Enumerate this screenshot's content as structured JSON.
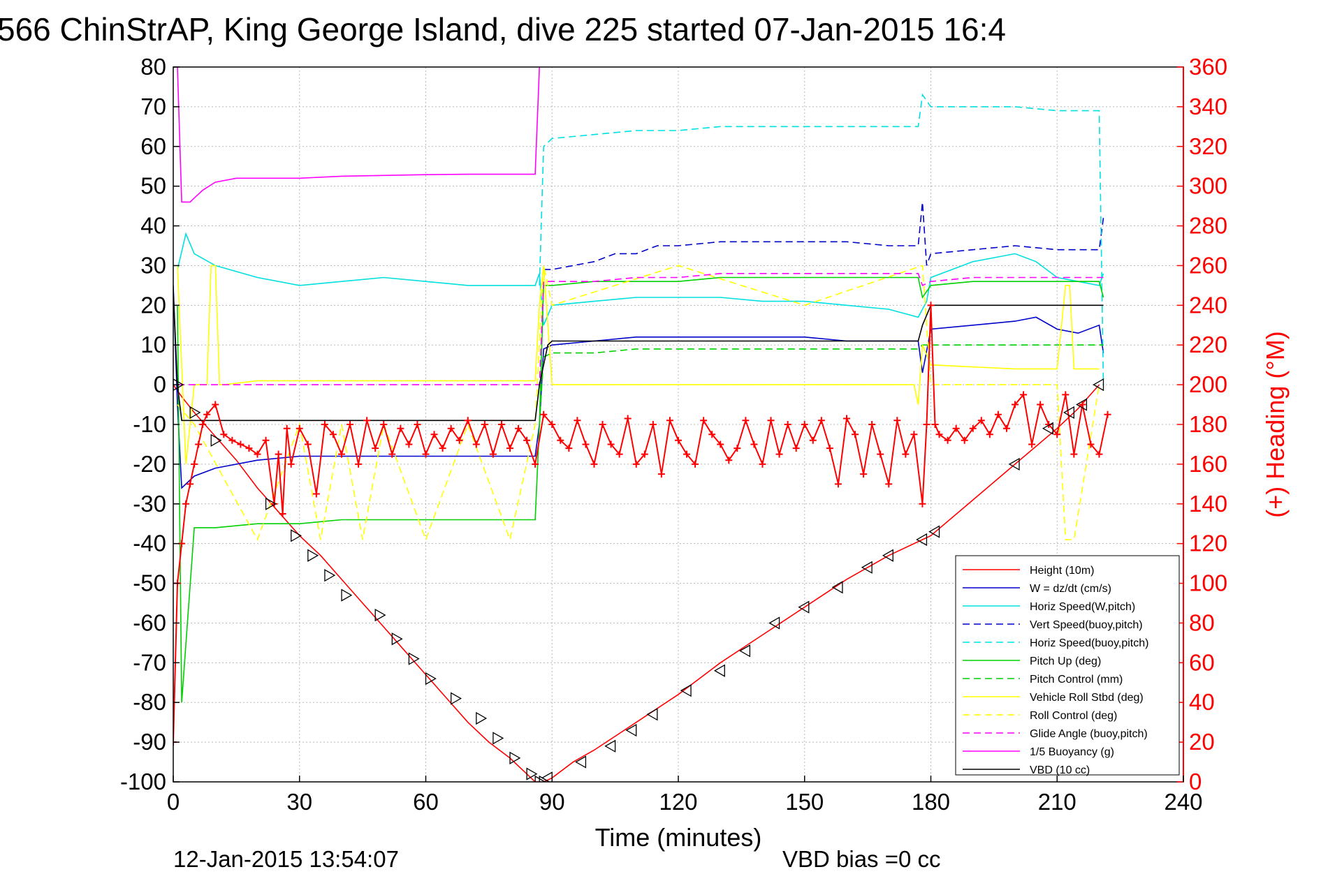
{
  "chart_data": {
    "type": "line",
    "title": "566 ChinStrAP, King George Island, dive 225 started 07-Jan-2015 16:4",
    "xlabel": "Time (minutes)",
    "ylabel_right": "(+) Heading (°M)",
    "xlim": [
      0,
      240
    ],
    "ylim_left": [
      -100,
      80
    ],
    "ylim_right": [
      0,
      360
    ],
    "grid": true,
    "legend_placement": "lower-right",
    "x_ticks": [
      "0",
      "30",
      "60",
      "90",
      "120",
      "150",
      "180",
      "210",
      "240"
    ],
    "y_ticks_left": [
      "80",
      "70",
      "60",
      "50",
      "40",
      "30",
      "20",
      "10",
      "0",
      "-10",
      "-20",
      "-30",
      "-40",
      "-50",
      "-60",
      "-70",
      "-80",
      "-90",
      "-100"
    ],
    "y_ticks_right": [
      "360",
      "340",
      "320",
      "300",
      "280",
      "260",
      "240",
      "220",
      "200",
      "180",
      "160",
      "140",
      "120",
      "100",
      "80",
      "60",
      "40",
      "20",
      "0"
    ],
    "footer_left": "12-Jan-2015 13:54:07",
    "footer_right": "VBD bias =0 cc",
    "series": [
      {
        "name": "Height (10m)",
        "color": "#ff0000",
        "style": "solid",
        "marker": "triangle",
        "x": [
          0,
          2,
          5,
          10,
          15,
          20,
          25,
          30,
          35,
          40,
          45,
          50,
          55,
          60,
          65,
          70,
          75,
          80,
          86,
          88,
          90,
          95,
          100,
          110,
          120,
          130,
          140,
          150,
          160,
          170,
          178,
          180,
          190,
          200,
          210,
          215,
          220
        ],
        "y": [
          0,
          -3,
          -7,
          -13,
          -19,
          -26,
          -32,
          -38,
          -43,
          -49,
          -55,
          -61,
          -67,
          -73,
          -79,
          -85,
          -90,
          -94,
          -100,
          -100,
          -99,
          -95,
          -92,
          -85,
          -78,
          -70,
          -63,
          -56,
          -49,
          -43,
          -39,
          -38,
          -29,
          -20,
          -11,
          -6,
          0
        ]
      },
      {
        "name": "W = dz/dt (cm/s)",
        "color": "#0000cc",
        "style": "solid",
        "x": [
          0,
          1,
          2,
          5,
          10,
          20,
          30,
          40,
          50,
          60,
          70,
          80,
          86,
          87,
          88,
          90,
          100,
          110,
          120,
          130,
          140,
          150,
          160,
          170,
          177,
          178,
          180,
          190,
          200,
          205,
          210,
          215,
          220,
          221
        ],
        "y": [
          25,
          -5,
          -26,
          -23,
          -21,
          -19,
          -18,
          -18,
          -18,
          -18,
          -18,
          -18,
          -18,
          -10,
          9,
          10,
          11,
          12,
          12,
          12,
          12,
          12,
          11,
          11,
          11,
          3,
          14,
          15,
          16,
          17,
          14,
          13,
          15,
          8
        ]
      },
      {
        "name": "Horiz Speed(W,pitch)",
        "color": "#00e0e0",
        "style": "solid",
        "x": [
          1,
          3,
          5,
          10,
          20,
          30,
          40,
          50,
          60,
          70,
          80,
          86,
          87,
          88,
          90,
          100,
          110,
          120,
          130,
          140,
          150,
          160,
          170,
          177,
          179,
          180,
          190,
          200,
          205,
          210,
          215,
          220,
          221
        ],
        "y": [
          29,
          38,
          33,
          30,
          27,
          25,
          26,
          27,
          26,
          25,
          25,
          25,
          28,
          15,
          20,
          21,
          22,
          22,
          22,
          21,
          21,
          20,
          19,
          17,
          21,
          27,
          31,
          33,
          31,
          27,
          26,
          25,
          28
        ]
      },
      {
        "name": "Vert Speed(buoy,pitch)",
        "color": "#0000cc",
        "style": "dashed",
        "x": [
          88,
          90,
          95,
          100,
          105,
          110,
          115,
          120,
          130,
          140,
          150,
          160,
          170,
          177,
          178,
          179,
          180,
          190,
          200,
          210,
          220,
          221
        ],
        "y": [
          29,
          29,
          30,
          31,
          33,
          33,
          35,
          35,
          36,
          36,
          36,
          36,
          35,
          35,
          46,
          30,
          33,
          34,
          35,
          34,
          34,
          42
        ]
      },
      {
        "name": "Horiz Speed(buoy,pitch)",
        "color": "#00e0e0",
        "style": "dashed",
        "x": [
          87,
          88,
          90,
          100,
          110,
          120,
          130,
          140,
          150,
          160,
          170,
          177,
          178,
          180,
          190,
          200,
          210,
          220,
          221
        ],
        "y": [
          25,
          60,
          62,
          63,
          64,
          64,
          65,
          65,
          65,
          65,
          65,
          65,
          73,
          70,
          70,
          70,
          69,
          69,
          0
        ]
      },
      {
        "name": "Pitch Up (deg)",
        "color": "#00d000",
        "style": "solid",
        "x": [
          1,
          2,
          5,
          10,
          20,
          30,
          40,
          50,
          60,
          70,
          80,
          86,
          87,
          88,
          90,
          100,
          110,
          120,
          130,
          140,
          150,
          160,
          170,
          177,
          178,
          180,
          190,
          200,
          210,
          220,
          221
        ],
        "y": [
          20,
          -80,
          -36,
          -36,
          -35,
          -35,
          -34,
          -34,
          -34,
          -34,
          -34,
          -34,
          -10,
          25,
          25,
          26,
          26,
          26,
          27,
          27,
          27,
          27,
          27,
          27,
          22,
          25,
          26,
          26,
          26,
          26,
          22
        ]
      },
      {
        "name": "Pitch Control (mm)",
        "color": "#00d000",
        "style": "dashed",
        "x": [
          87,
          88,
          90,
          100,
          110,
          120,
          130,
          140,
          150,
          160,
          170,
          177,
          178,
          180,
          190,
          200,
          210,
          220,
          221
        ],
        "y": [
          -10,
          7,
          8,
          8,
          9,
          9,
          9,
          9,
          9,
          9,
          9,
          9,
          10,
          10,
          10,
          10,
          10,
          10,
          10
        ]
      },
      {
        "name": "Vehicle Roll Stbd (deg)",
        "color": "#ffff00",
        "style": "solid",
        "x": [
          1,
          3,
          5,
          8,
          9,
          10,
          11,
          12,
          20,
          40,
          60,
          80,
          86,
          87,
          88,
          90,
          100,
          120,
          140,
          160,
          176,
          177,
          178,
          180,
          200,
          210,
          212,
          213,
          214,
          220
        ],
        "y": [
          30,
          -20,
          0,
          0,
          30,
          30,
          0,
          0,
          1,
          1,
          1,
          1,
          1,
          20,
          30,
          0,
          0,
          0,
          0,
          0,
          0,
          -5,
          10,
          5,
          4,
          4,
          25,
          25,
          4,
          4
        ]
      },
      {
        "name": "Roll Control (deg)",
        "color": "#ffff00",
        "style": "dashed",
        "x": [
          1,
          5,
          20,
          30,
          35,
          40,
          45,
          50,
          60,
          70,
          80,
          86,
          88,
          90,
          120,
          150,
          178,
          180,
          200,
          210,
          212,
          214,
          220
        ],
        "y": [
          -5,
          -10,
          -39,
          -10,
          -39,
          -10,
          -39,
          -10,
          -39,
          -10,
          -39,
          -10,
          30,
          20,
          30,
          20,
          30,
          0,
          0,
          0,
          -39,
          -39,
          0
        ]
      },
      {
        "name": "Glide Angle (buoy,pitch)",
        "color": "#ff00ff",
        "style": "dashed",
        "x": [
          1,
          10,
          40,
          86,
          87,
          88,
          90,
          100,
          110,
          120,
          130,
          140,
          150,
          160,
          170,
          177,
          178,
          180,
          190,
          200,
          210,
          220,
          221
        ],
        "y": [
          0,
          0,
          0,
          0,
          0,
          26,
          26,
          26,
          27,
          27,
          28,
          28,
          28,
          28,
          28,
          28,
          25,
          26,
          27,
          27,
          27,
          27,
          27
        ]
      },
      {
        "name": "1/5 Buoyancy (g)",
        "color": "#ff00ff",
        "style": "solid",
        "x": [
          0,
          1,
          2,
          3,
          4,
          5,
          7,
          10,
          15,
          20,
          30,
          40,
          50,
          60,
          70,
          80,
          85,
          86,
          87
        ],
        "y": [
          80,
          80,
          46,
          46,
          46,
          47,
          49,
          51,
          52,
          52,
          52,
          52.5,
          52.7,
          52.9,
          53,
          53,
          53,
          53,
          80
        ]
      },
      {
        "name": "VBD (10 cc)",
        "color": "#000000",
        "style": "solid",
        "x": [
          0,
          1,
          2,
          10,
          20,
          40,
          60,
          80,
          86,
          87,
          89,
          90,
          100,
          120,
          140,
          160,
          177,
          178,
          180,
          200,
          210,
          220,
          221
        ],
        "y": [
          24,
          0,
          -9,
          -9,
          -9,
          -9,
          -9,
          -9,
          -9,
          0,
          10,
          11,
          11,
          11,
          11,
          11,
          11,
          15,
          20,
          20,
          20,
          20,
          20
        ]
      }
    ],
    "heading_series": {
      "name": "Heading",
      "color": "#ff0000",
      "marker": "plus",
      "axis": "right",
      "x": [
        0,
        1,
        2,
        3,
        4,
        5,
        6,
        7,
        8,
        10,
        12,
        14,
        16,
        18,
        20,
        22,
        24,
        25,
        26,
        27,
        28,
        30,
        32,
        34,
        36,
        38,
        40,
        42,
        44,
        46,
        48,
        50,
        52,
        54,
        56,
        58,
        60,
        62,
        64,
        66,
        68,
        70,
        72,
        74,
        76,
        78,
        80,
        82,
        84,
        86,
        88,
        90,
        92,
        94,
        96,
        98,
        100,
        102,
        104,
        106,
        108,
        110,
        112,
        114,
        116,
        118,
        120,
        122,
        124,
        126,
        128,
        130,
        132,
        134,
        136,
        138,
        140,
        142,
        144,
        146,
        148,
        150,
        152,
        154,
        156,
        158,
        160,
        162,
        164,
        166,
        168,
        170,
        172,
        174,
        176,
        178,
        179,
        180,
        181,
        182,
        184,
        186,
        188,
        190,
        192,
        194,
        196,
        198,
        200,
        202,
        204,
        206,
        208,
        210,
        212,
        214,
        216,
        218,
        220,
        222
      ],
      "y": [
        20,
        100,
        120,
        140,
        150,
        160,
        170,
        180,
        185,
        190,
        175,
        172,
        170,
        168,
        165,
        172,
        140,
        165,
        135,
        178,
        160,
        178,
        170,
        145,
        180,
        175,
        165,
        180,
        160,
        182,
        168,
        180,
        165,
        178,
        170,
        180,
        165,
        175,
        168,
        178,
        172,
        182,
        170,
        180,
        165,
        180,
        168,
        178,
        172,
        160,
        185,
        180,
        172,
        168,
        182,
        170,
        160,
        180,
        170,
        165,
        183,
        160,
        165,
        180,
        155,
        182,
        172,
        165,
        160,
        182,
        175,
        170,
        162,
        168,
        182,
        170,
        160,
        182,
        165,
        180,
        168,
        180,
        172,
        182,
        168,
        150,
        183,
        175,
        155,
        180,
        165,
        150,
        182,
        165,
        175,
        140,
        180,
        240,
        180,
        175,
        172,
        178,
        172,
        178,
        182,
        175,
        185,
        178,
        190,
        195,
        170,
        190,
        180,
        175,
        195,
        165,
        190,
        170,
        165,
        185
      ]
    },
    "dive_markers": {
      "tri_right": {
        "x": [
          1,
          5,
          10,
          23,
          29,
          33,
          37,
          41,
          49,
          53,
          57,
          61,
          67,
          73,
          77,
          81,
          85,
          87,
          88
        ],
        "y": [
          0,
          -7,
          -14,
          -30,
          -38,
          -43,
          -48,
          -53,
          -58,
          -64,
          -69,
          -74,
          -79,
          -84,
          -89,
          -94,
          -98,
          -100,
          -100
        ]
      },
      "tri_left": {
        "x": [
          89,
          97,
          104,
          109,
          114,
          122,
          130,
          136,
          143,
          150,
          158,
          165,
          170,
          178,
          181,
          200,
          208,
          213,
          216,
          220
        ],
        "y": [
          -99,
          -95,
          -91,
          -87,
          -83,
          -77,
          -72,
          -67,
          -60,
          -56,
          -51,
          -46,
          -43,
          -39,
          -37,
          -20,
          -11,
          -7,
          -5,
          0
        ]
      }
    }
  }
}
